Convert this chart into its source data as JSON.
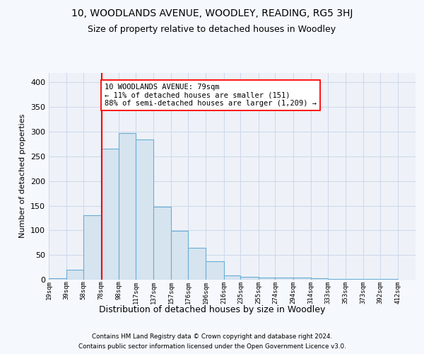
{
  "title": "10, WOODLANDS AVENUE, WOODLEY, READING, RG5 3HJ",
  "subtitle": "Size of property relative to detached houses in Woodley",
  "xlabel": "Distribution of detached houses by size in Woodley",
  "ylabel": "Number of detached properties",
  "footer1": "Contains HM Land Registry data © Crown copyright and database right 2024.",
  "footer2": "Contains public sector information licensed under the Open Government Licence v3.0.",
  "bin_labels": [
    "19sqm",
    "39sqm",
    "58sqm",
    "78sqm",
    "98sqm",
    "117sqm",
    "137sqm",
    "157sqm",
    "176sqm",
    "196sqm",
    "216sqm",
    "235sqm",
    "255sqm",
    "274sqm",
    "294sqm",
    "314sqm",
    "333sqm",
    "353sqm",
    "373sqm",
    "392sqm",
    "412sqm"
  ],
  "bar_values": [
    3,
    20,
    131,
    265,
    297,
    285,
    148,
    99,
    65,
    38,
    9,
    6,
    4,
    5,
    5,
    3,
    2,
    1,
    2,
    1
  ],
  "bar_color": "#d6e4f0",
  "bar_edge_color": "#6aadd5",
  "grid_color": "#d0daea",
  "annotation_text": "10 WOODLANDS AVENUE: 79sqm\n← 11% of detached houses are smaller (151)\n88% of semi-detached houses are larger (1,209) →",
  "vline_pos": 79,
  "bin_edges": [
    19,
    39,
    58,
    78,
    98,
    117,
    137,
    157,
    176,
    196,
    216,
    235,
    255,
    274,
    294,
    314,
    333,
    353,
    373,
    392,
    412
  ],
  "ylim": [
    0,
    420
  ],
  "yticks": [
    0,
    50,
    100,
    150,
    200,
    250,
    300,
    350,
    400
  ],
  "bg_color": "#f5f8fc",
  "plot_bg_color": "#eef2f8"
}
